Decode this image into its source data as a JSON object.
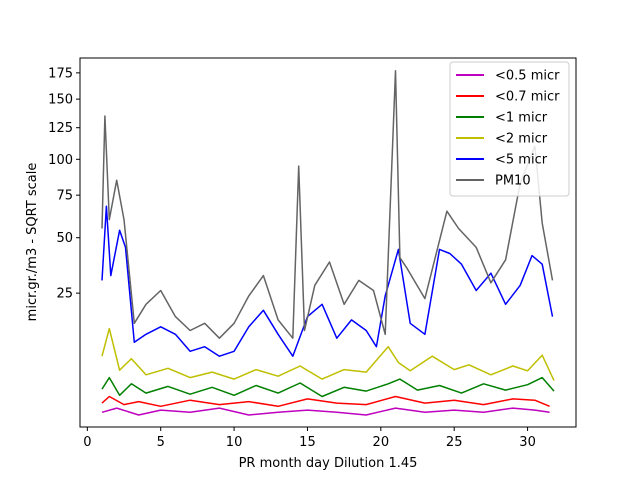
{
  "chart_data": {
    "type": "line",
    "xlabel": "PR month day  Dilution 1.45",
    "ylabel": "micr.gr./m3 - SQRT scale",
    "xlim": [
      -0.5,
      33.3
    ],
    "ylim": [
      0,
      190
    ],
    "y_scale": "sqrt",
    "x_ticks": [
      0,
      5,
      10,
      15,
      20,
      25,
      30
    ],
    "y_ticks": [
      25,
      50,
      75,
      100,
      125,
      150,
      175
    ],
    "legend_position": "top-right",
    "series": [
      {
        "name": "<0.5 micr",
        "color": "#bf00bf",
        "x": [
          1.0,
          2.0,
          3.5,
          5.0,
          7.0,
          9.0,
          11.0,
          13.0,
          15.0,
          17.0,
          19.0,
          21.0,
          23.0,
          25.0,
          27.0,
          29.0,
          30.5,
          31.5
        ],
        "y": [
          0.3,
          0.5,
          0.2,
          0.4,
          0.3,
          0.5,
          0.2,
          0.3,
          0.4,
          0.3,
          0.2,
          0.5,
          0.3,
          0.4,
          0.3,
          0.5,
          0.4,
          0.3
        ]
      },
      {
        "name": "<0.7 micr",
        "color": "#ff0000",
        "x": [
          1.0,
          1.5,
          2.5,
          3.5,
          5.0,
          7.0,
          9.0,
          11.0,
          13.0,
          15.0,
          17.0,
          19.0,
          21.0,
          23.0,
          25.0,
          27.0,
          29.0,
          30.5,
          31.5
        ],
        "y": [
          0.8,
          1.3,
          0.7,
          0.9,
          0.6,
          1.0,
          0.7,
          0.9,
          0.6,
          1.1,
          0.8,
          0.7,
          1.3,
          0.8,
          1.0,
          0.7,
          1.1,
          1.0,
          0.6
        ]
      },
      {
        "name": "<1 micr",
        "color": "#008000",
        "x": [
          1.0,
          1.5,
          2.2,
          3.0,
          4.0,
          5.5,
          7.0,
          8.5,
          10.0,
          11.5,
          13.0,
          14.5,
          16.0,
          17.5,
          19.0,
          20.5,
          21.3,
          22.5,
          24.0,
          25.5,
          27.0,
          28.5,
          30.0,
          31.0,
          31.8
        ],
        "y": [
          2.0,
          3.4,
          1.4,
          2.6,
          1.6,
          2.3,
          1.5,
          2.2,
          1.4,
          2.4,
          1.6,
          2.7,
          1.3,
          2.2,
          1.8,
          2.6,
          3.2,
          1.9,
          2.4,
          1.6,
          2.6,
          1.9,
          2.5,
          3.4,
          1.8
        ]
      },
      {
        "name": "<2 micr",
        "color": "#bfbf00",
        "x": [
          1.0,
          1.5,
          2.2,
          3.0,
          4.0,
          5.5,
          7.0,
          8.5,
          10.0,
          11.5,
          13.0,
          14.5,
          16.0,
          17.5,
          19.0,
          20.5,
          21.2,
          22.0,
          23.5,
          25.0,
          26.0,
          27.5,
          29.0,
          30.0,
          31.0,
          31.8
        ],
        "y": [
          7.0,
          13.5,
          4.5,
          6.5,
          3.8,
          4.8,
          3.4,
          4.2,
          3.2,
          4.6,
          3.6,
          5.2,
          3.2,
          4.6,
          4.2,
          9.0,
          5.8,
          4.4,
          7.0,
          4.6,
          5.4,
          3.8,
          5.2,
          4.4,
          7.2,
          3.0
        ]
      },
      {
        "name": "<5 micr",
        "color": "#0000ff",
        "x": [
          1.0,
          1.3,
          1.6,
          2.2,
          2.6,
          3.2,
          4.0,
          5.0,
          6.0,
          7.0,
          8.0,
          9.0,
          10.0,
          11.0,
          12.0,
          13.0,
          14.0,
          15.0,
          16.0,
          17.0,
          18.0,
          19.0,
          19.7,
          20.3,
          21.2,
          22.0,
          23.0,
          24.0,
          24.7,
          25.5,
          26.5,
          27.5,
          28.5,
          29.5,
          30.3,
          31.0,
          31.7
        ],
        "y": [
          30,
          68,
          32,
          54,
          45,
          10,
          12,
          14,
          12,
          8,
          9,
          7,
          8,
          14,
          19,
          12,
          7,
          17,
          21,
          11,
          16,
          13,
          9,
          24,
          44,
          15,
          12,
          44,
          42,
          37,
          26,
          33,
          21,
          28,
          41,
          37,
          17
        ]
      },
      {
        "name": "PM10",
        "color": "#646464",
        "x": [
          1.0,
          1.2,
          1.5,
          2.0,
          2.5,
          3.2,
          4.0,
          5.0,
          6.0,
          7.0,
          8.0,
          9.0,
          10.0,
          11.0,
          12.0,
          13.0,
          14.0,
          14.4,
          14.8,
          15.5,
          16.5,
          17.5,
          18.5,
          19.5,
          20.3,
          21.0,
          21.3,
          21.8,
          23.0,
          24.5,
          25.3,
          26.5,
          27.5,
          28.5,
          29.5,
          30.5,
          31.0,
          31.7
        ],
        "y": [
          55,
          135,
          60,
          85,
          60,
          15,
          21,
          26,
          17,
          13,
          15,
          11,
          15,
          24,
          32,
          16,
          11,
          95,
          13,
          28,
          38,
          21,
          30,
          26,
          12,
          177,
          40,
          35,
          23,
          65,
          55,
          45,
          29,
          39,
          83,
          110,
          58,
          30
        ]
      }
    ]
  }
}
